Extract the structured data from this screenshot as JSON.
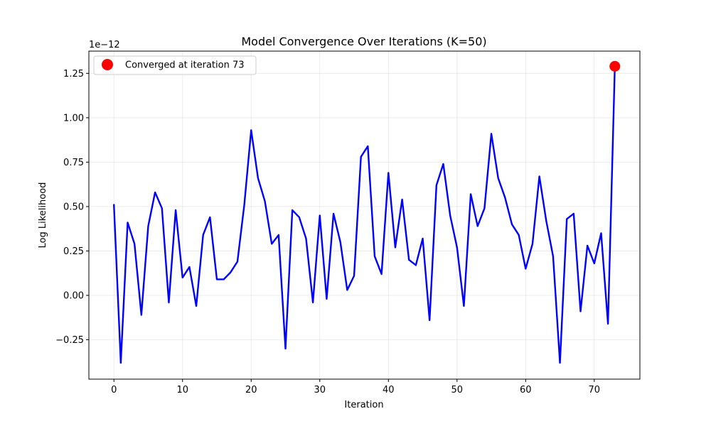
{
  "chart_data": {
    "type": "line",
    "title": "Model Convergence Over Iterations (K=50)",
    "xlabel": "Iteration",
    "ylabel": "Log Likelihood",
    "y_offset_text": "1e−12",
    "xlim": [
      -3.65,
      76.65
    ],
    "ylim": [
      -0.4718,
      1.3753
    ],
    "x_ticks": [
      0,
      10,
      20,
      30,
      40,
      50,
      60,
      70
    ],
    "x_tick_labels": [
      "0",
      "10",
      "20",
      "30",
      "40",
      "50",
      "60",
      "70"
    ],
    "y_ticks": [
      -0.25,
      0.0,
      0.25,
      0.5,
      0.75,
      1.0,
      1.25
    ],
    "y_tick_labels": [
      "−0.25",
      "0.00",
      "0.25",
      "0.50",
      "0.75",
      "1.00",
      "1.25"
    ],
    "grid": true,
    "legend_placement": "upper-left",
    "series": [
      {
        "name": "",
        "color": "#0000ff",
        "x": [
          0,
          1,
          2,
          3,
          4,
          5,
          6,
          7,
          8,
          9,
          10,
          11,
          12,
          13,
          14,
          15,
          16,
          17,
          18,
          19,
          20,
          21,
          22,
          23,
          24,
          25,
          26,
          27,
          28,
          29,
          30,
          31,
          32,
          33,
          34,
          35,
          36,
          37,
          38,
          39,
          40,
          41,
          42,
          43,
          44,
          45,
          46,
          47,
          48,
          49,
          50,
          51,
          52,
          53,
          54,
          55,
          56,
          57,
          58,
          59,
          60,
          61,
          62,
          63,
          64,
          65,
          66,
          67,
          68,
          69,
          70,
          71,
          72,
          73
        ],
        "values": [
          0.51,
          -0.38,
          0.41,
          0.29,
          -0.11,
          0.39,
          0.58,
          0.49,
          -0.04,
          0.48,
          0.1,
          0.16,
          -0.06,
          0.34,
          0.44,
          0.09,
          0.09,
          0.13,
          0.19,
          0.51,
          0.93,
          0.66,
          0.53,
          0.29,
          0.34,
          -0.3,
          0.48,
          0.44,
          0.32,
          -0.04,
          0.45,
          -0.02,
          0.46,
          0.3,
          0.03,
          0.11,
          0.78,
          0.84,
          0.22,
          0.12,
          0.69,
          0.27,
          0.54,
          0.2,
          0.17,
          0.32,
          -0.14,
          0.62,
          0.74,
          0.45,
          0.27,
          -0.06,
          0.57,
          0.39,
          0.49,
          0.91,
          0.66,
          0.55,
          0.4,
          0.34,
          0.15,
          0.29,
          0.67,
          0.42,
          0.22,
          -0.38,
          0.43,
          0.46,
          -0.09,
          0.28,
          0.18,
          0.35,
          -0.16,
          1.29
        ]
      }
    ],
    "marker": {
      "label": "Converged at iteration 73",
      "x": 73,
      "y": 1.29,
      "color": "#ff0000"
    }
  }
}
